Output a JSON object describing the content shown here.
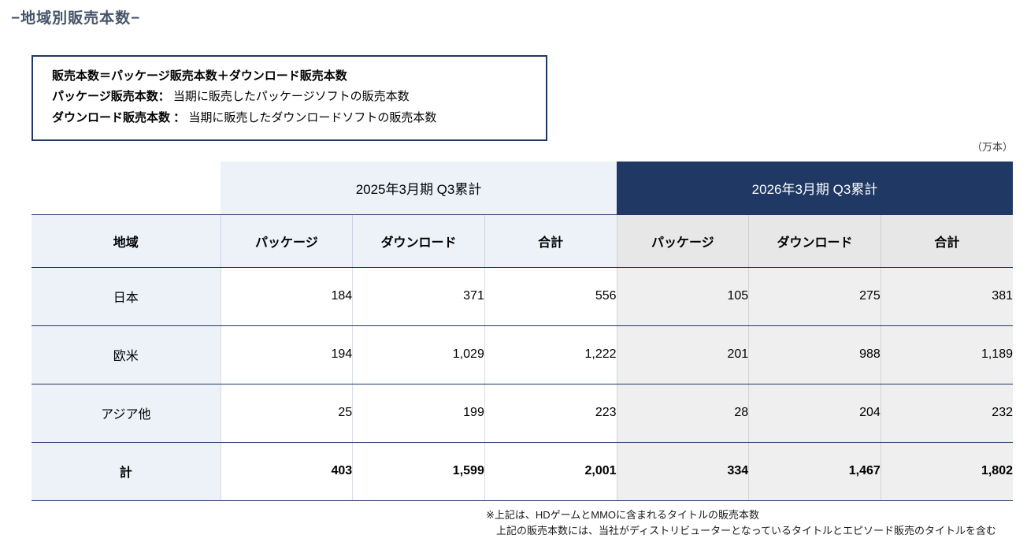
{
  "page": {
    "title": "−地域別販売本数−",
    "unit_label": "（万本）"
  },
  "definition_box": {
    "lines": [
      {
        "term": "販売本数＝パッケージ販売本数＋ダウンロード販売本数",
        "rest": ""
      },
      {
        "term": "パッケージ販売本数：",
        "rest": " 当期に販売したパッケージソフトの販売本数"
      },
      {
        "term": "ダウンロード販売本数 ：",
        "rest": " 当期に販売したダウンロードソフトの販売本数"
      }
    ]
  },
  "table": {
    "period_headers": [
      "2025年3月期  Q3累計",
      "2026年3月期  Q3累計"
    ],
    "column_headers": [
      "地域",
      "パッケージ",
      "ダウンロード",
      "合計",
      "パッケージ",
      "ダウンロード",
      "合計"
    ],
    "rows": [
      {
        "label": "日本",
        "values": [
          "184",
          "371",
          "556",
          "105",
          "275",
          "381"
        ]
      },
      {
        "label": "欧米",
        "values": [
          "194",
          "1,029",
          "1,222",
          "201",
          "988",
          "1,189"
        ]
      },
      {
        "label": "アジア他",
        "values": [
          "25",
          "199",
          "223",
          "28",
          "204",
          "232"
        ]
      },
      {
        "label": "計",
        "values": [
          "403",
          "1,599",
          "2,001",
          "334",
          "1,467",
          "1,802"
        ]
      }
    ]
  },
  "footnotes": [
    "※上記は、HDゲームとMMOに含まれるタイトルの販売本数",
    "上記の販売本数には、当社がディストリビューターとなっているタイトルとエピソード販売のタイトルを含む"
  ],
  "colors": {
    "navy": "#1F3864",
    "light_blue": "#EDF2F9",
    "light_gray": "#EFEFEF"
  }
}
